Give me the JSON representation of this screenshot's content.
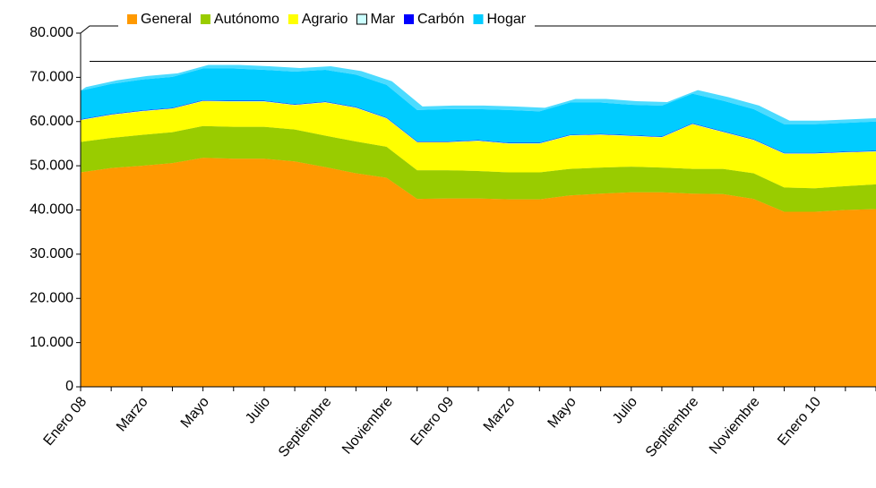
{
  "chart_data": {
    "type": "stacked_area",
    "categories": [
      "Enero 08",
      null,
      "Marzo",
      null,
      "Mayo",
      null,
      "Julio",
      null,
      "Septiembre",
      null,
      "Noviembre",
      null,
      "Enero 09",
      null,
      "Marzo",
      null,
      "Mayo",
      null,
      "Julio",
      null,
      "Septiembre",
      null,
      "Noviembre",
      null,
      "Enero 10",
      null,
      null
    ],
    "series": [
      {
        "name": "General",
        "color": "#ff9900",
        "values": [
          48500,
          49500,
          50000,
          50600,
          51800,
          51600,
          51600,
          51000,
          49700,
          48300,
          47300,
          42500,
          42600,
          42600,
          42400,
          42400,
          43300,
          43700,
          44000,
          44000,
          43700,
          43600,
          42500,
          39600,
          39600,
          40000,
          40200
        ]
      },
      {
        "name": "Autónomo",
        "color": "#99cc00",
        "values": [
          6900,
          6800,
          7000,
          7000,
          7200,
          7200,
          7200,
          7200,
          7100,
          7200,
          7000,
          6500,
          6400,
          6200,
          6100,
          6100,
          6000,
          5900,
          5800,
          5600,
          5600,
          5700,
          5800,
          5500,
          5300,
          5400,
          5600
        ]
      },
      {
        "name": "Agrario",
        "color": "#ffff00",
        "values": [
          4900,
          5200,
          5300,
          5300,
          5600,
          5700,
          5700,
          5500,
          7500,
          7600,
          6400,
          6300,
          6300,
          6800,
          6500,
          6500,
          7500,
          7400,
          6900,
          6800,
          10100,
          8300,
          7500,
          7600,
          7800,
          7600,
          7400
        ]
      },
      {
        "name": "Mar",
        "color": "#ccffff",
        "values": [
          100,
          100,
          100,
          100,
          100,
          100,
          100,
          100,
          100,
          100,
          100,
          100,
          100,
          100,
          100,
          100,
          100,
          100,
          100,
          100,
          100,
          100,
          100,
          100,
          100,
          100,
          100
        ]
      },
      {
        "name": "Carbón",
        "color": "#0000ff",
        "values": [
          100,
          100,
          100,
          100,
          100,
          100,
          100,
          100,
          100,
          100,
          100,
          100,
          100,
          100,
          100,
          100,
          100,
          100,
          100,
          100,
          100,
          100,
          100,
          100,
          100,
          100,
          100
        ]
      },
      {
        "name": "Hogar",
        "color": "#00ccff",
        "values": [
          6500,
          6800,
          7000,
          7000,
          7200,
          7300,
          7000,
          7400,
          7200,
          7300,
          7400,
          7100,
          7300,
          7000,
          7400,
          7100,
          7300,
          7100,
          6900,
          7000,
          6700,
          6900,
          6800,
          6500,
          6500,
          6500,
          6600
        ]
      }
    ],
    "ylim": [
      0,
      80000
    ],
    "yticks": [
      0,
      {
        "value": 10000,
        "label": "10.000"
      },
      {
        "value": 20000,
        "label": "20.000"
      },
      {
        "value": 30000,
        "label": "30.000"
      },
      {
        "value": 40000,
        "label": "40.000"
      },
      {
        "value": 50000,
        "label": "50.000"
      },
      {
        "value": 60000,
        "label": "60.000"
      },
      {
        "value": 70000,
        "label": "70.000"
      },
      {
        "value": 80000,
        "label": "80.000"
      }
    ],
    "legend": "top"
  }
}
